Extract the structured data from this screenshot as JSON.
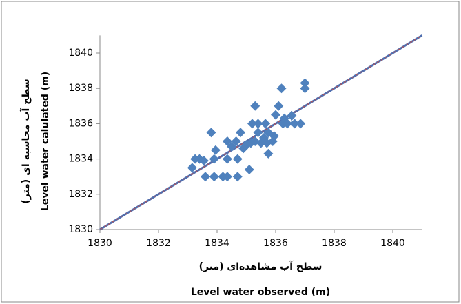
{
  "chart_data": {
    "type": "scatter",
    "x_label_fa": "سطح آب مشاهده‌ای (متر)",
    "x_label": "Level water observed (m)",
    "y_label_fa": "سطح آب محاسبه ای (متر)",
    "y_label": "Level water calulated (m)",
    "x": [
      1833.15,
      1833.25,
      1833.4,
      1833.55,
      1833.6,
      1833.8,
      1833.9,
      1833.95,
      1833.9,
      1834.2,
      1834.35,
      1834.35,
      1834.35,
      1834.5,
      1834.65,
      1834.7,
      1834.7,
      1834.8,
      1834.9,
      1835,
      1835.1,
      1835.15,
      1835.2,
      1835.3,
      1835.3,
      1835.4,
      1835.4,
      1835.5,
      1835.6,
      1835.65,
      1835.7,
      1835.75,
      1835.75,
      1835.9,
      1835.95,
      1836,
      1836.1,
      1836.2,
      1836.25,
      1836.3,
      1836.4,
      1836.55,
      1836.65,
      1836.85,
      1837,
      1837
    ],
    "y": [
      1833.5,
      1834,
      1834,
      1833.9,
      1833,
      1835.5,
      1833,
      1834.5,
      1834,
      1833,
      1833,
      1835,
      1834,
      1834.7,
      1835,
      1834,
      1833,
      1835.5,
      1834.6,
      1834.8,
      1833.4,
      1834.9,
      1836,
      1837,
      1835,
      1835.5,
      1836,
      1834.9,
      1835.2,
      1836,
      1834.9,
      1834.3,
      1835.5,
      1835,
      1835.3,
      1836.5,
      1837,
      1838,
      1836,
      1836.3,
      1836,
      1836.45,
      1836,
      1836,
      1838.3,
      1838
    ],
    "color": "#4f81bd",
    "line": {
      "x": [
        1830,
        1841
      ],
      "y": [
        1830,
        1841
      ],
      "color": "#4f6fb0",
      "dash_color": "#c0504d"
    },
    "xlim": [
      1830,
      1841
    ],
    "ylim": [
      1830,
      1841
    ],
    "xticks": [
      1830,
      1832,
      1834,
      1836,
      1838,
      1840
    ],
    "yticks": [
      1830,
      1832,
      1834,
      1836,
      1838,
      1840
    ]
  }
}
